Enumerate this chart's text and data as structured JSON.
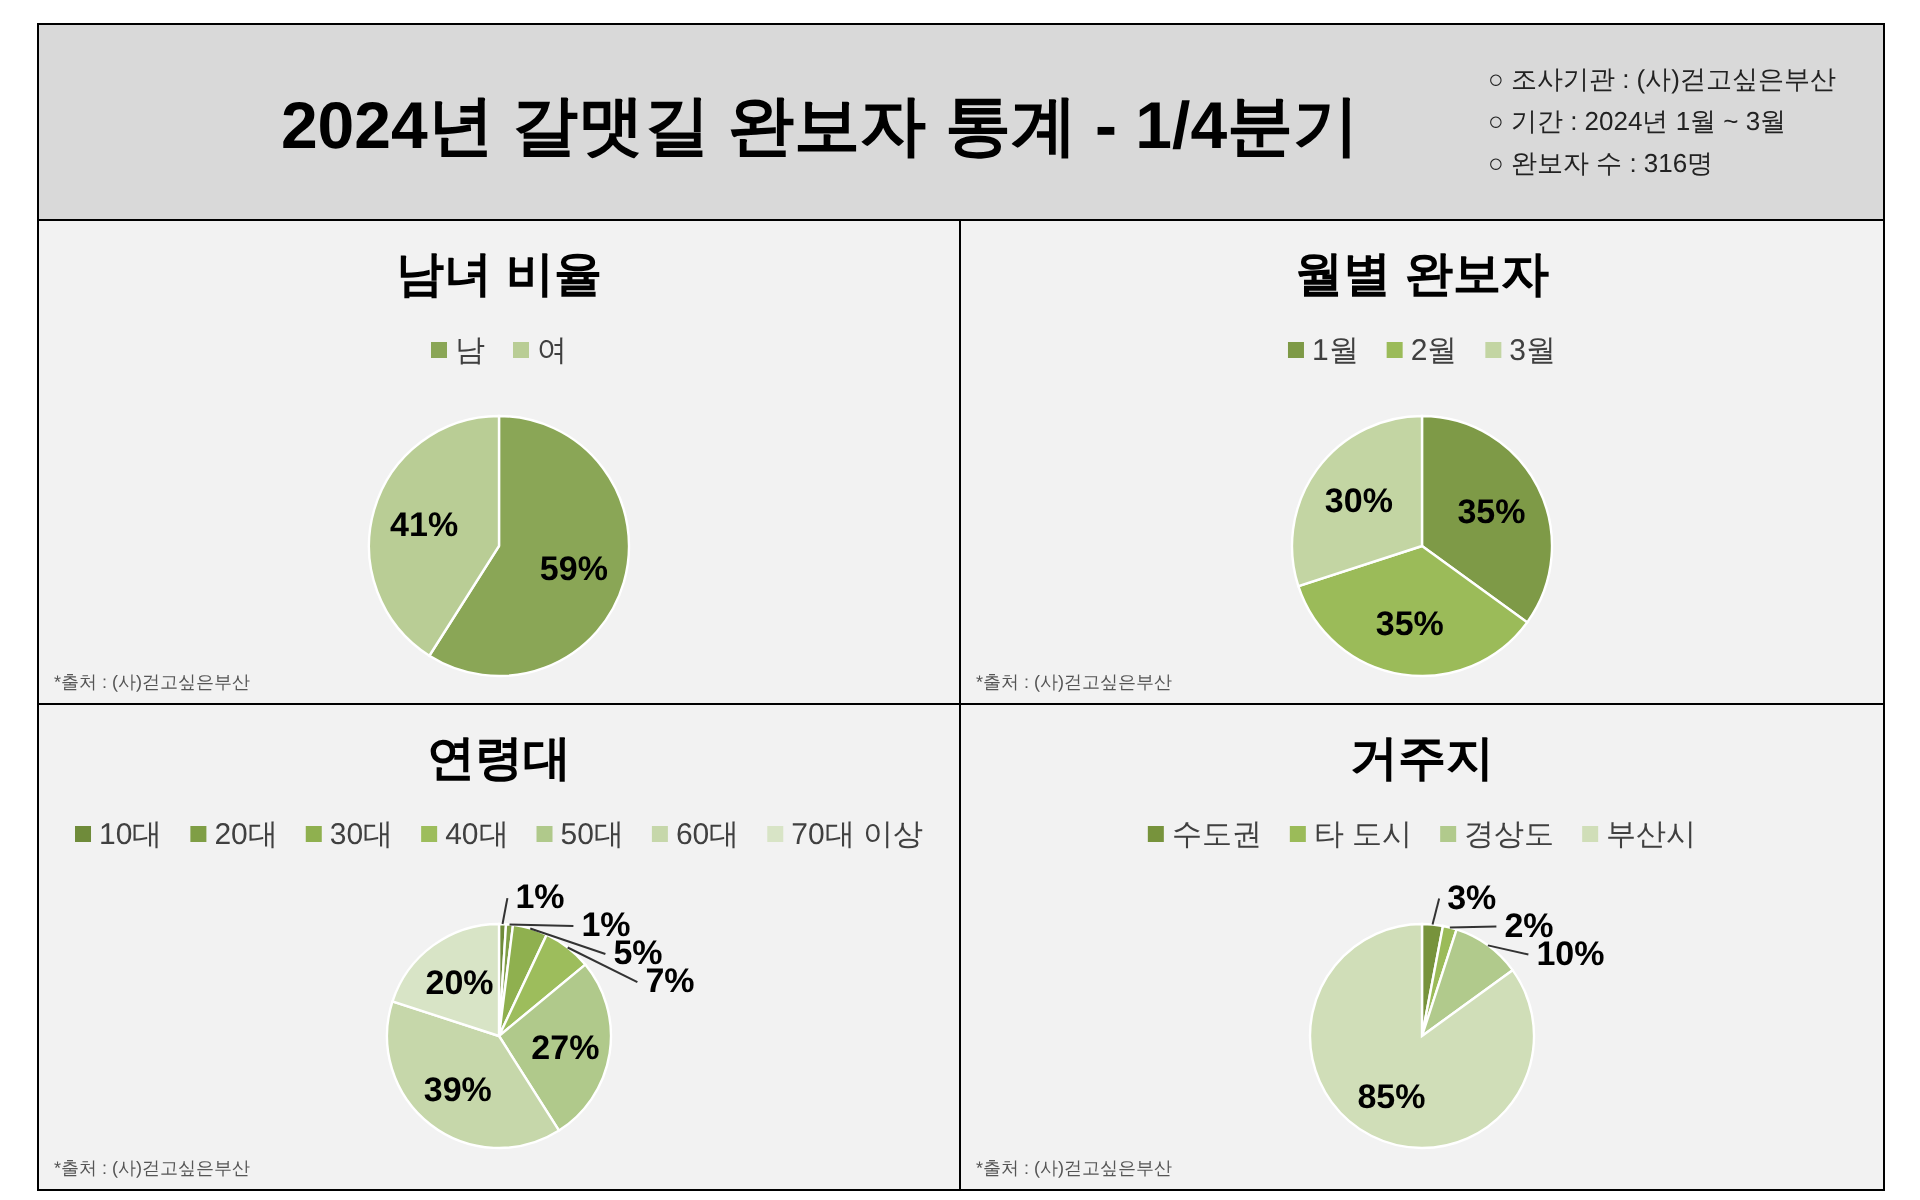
{
  "chart_data": [
    {
      "type": "other",
      "title": "2024년 갈맷길 완보자 통계 - 1/4분기",
      "annotations": [
        "○ 조사기관 : (사)걷고싶은부산",
        "○ 기간 : 2024년 1월 ~ 3월",
        "○ 완보자 수 : 316명"
      ]
    },
    {
      "type": "pie",
      "title": "남녀 비율",
      "categories": [
        "남",
        "여"
      ],
      "values": [
        59,
        41
      ],
      "value_labels": [
        "59%",
        "41%"
      ],
      "colors": [
        "#8aa656",
        "#b9cd95"
      ],
      "legend": "top",
      "annotations": [
        "*출처 : (사)걷고싶은부산"
      ]
    },
    {
      "type": "pie",
      "title": "월별 완보자",
      "categories": [
        "1월",
        "2월",
        "3월"
      ],
      "values": [
        35,
        35,
        30
      ],
      "value_labels": [
        "35%",
        "35%",
        "30%"
      ],
      "colors": [
        "#7e9a47",
        "#9bbb59",
        "#c3d5a3"
      ],
      "legend": "top",
      "annotations": [
        "*출처 : (사)걷고싶은부산"
      ]
    },
    {
      "type": "pie",
      "title": "연령대",
      "categories": [
        "10대",
        "20대",
        "30대",
        "40대",
        "50대",
        "60대",
        "70대 이상"
      ],
      "values": [
        1,
        1,
        5,
        7,
        27,
        39,
        20
      ],
      "value_labels": [
        "1%",
        "1%",
        "5%",
        "7%",
        "27%",
        "39%",
        "20%"
      ],
      "colors": [
        "#6f8b3a",
        "#7f9e45",
        "#8fb04f",
        "#9dbd5c",
        "#b0c98b",
        "#c6d7aa",
        "#d8e4c6"
      ],
      "legend": "top",
      "annotations": [
        "*출처 : (사)걷고싶은부산"
      ]
    },
    {
      "type": "pie",
      "title": "거주지",
      "categories": [
        "수도권",
        "타 도시",
        "경상도",
        "부산시"
      ],
      "values": [
        3,
        2,
        10,
        85
      ],
      "value_labels": [
        "3%",
        "2%",
        "10%",
        "85%"
      ],
      "colors": [
        "#77933c",
        "#9bbb59",
        "#b1ca8c",
        "#d0deb8"
      ],
      "legend": "top",
      "annotations": [
        "*출처 : (사)걷고싶은부산"
      ]
    }
  ]
}
